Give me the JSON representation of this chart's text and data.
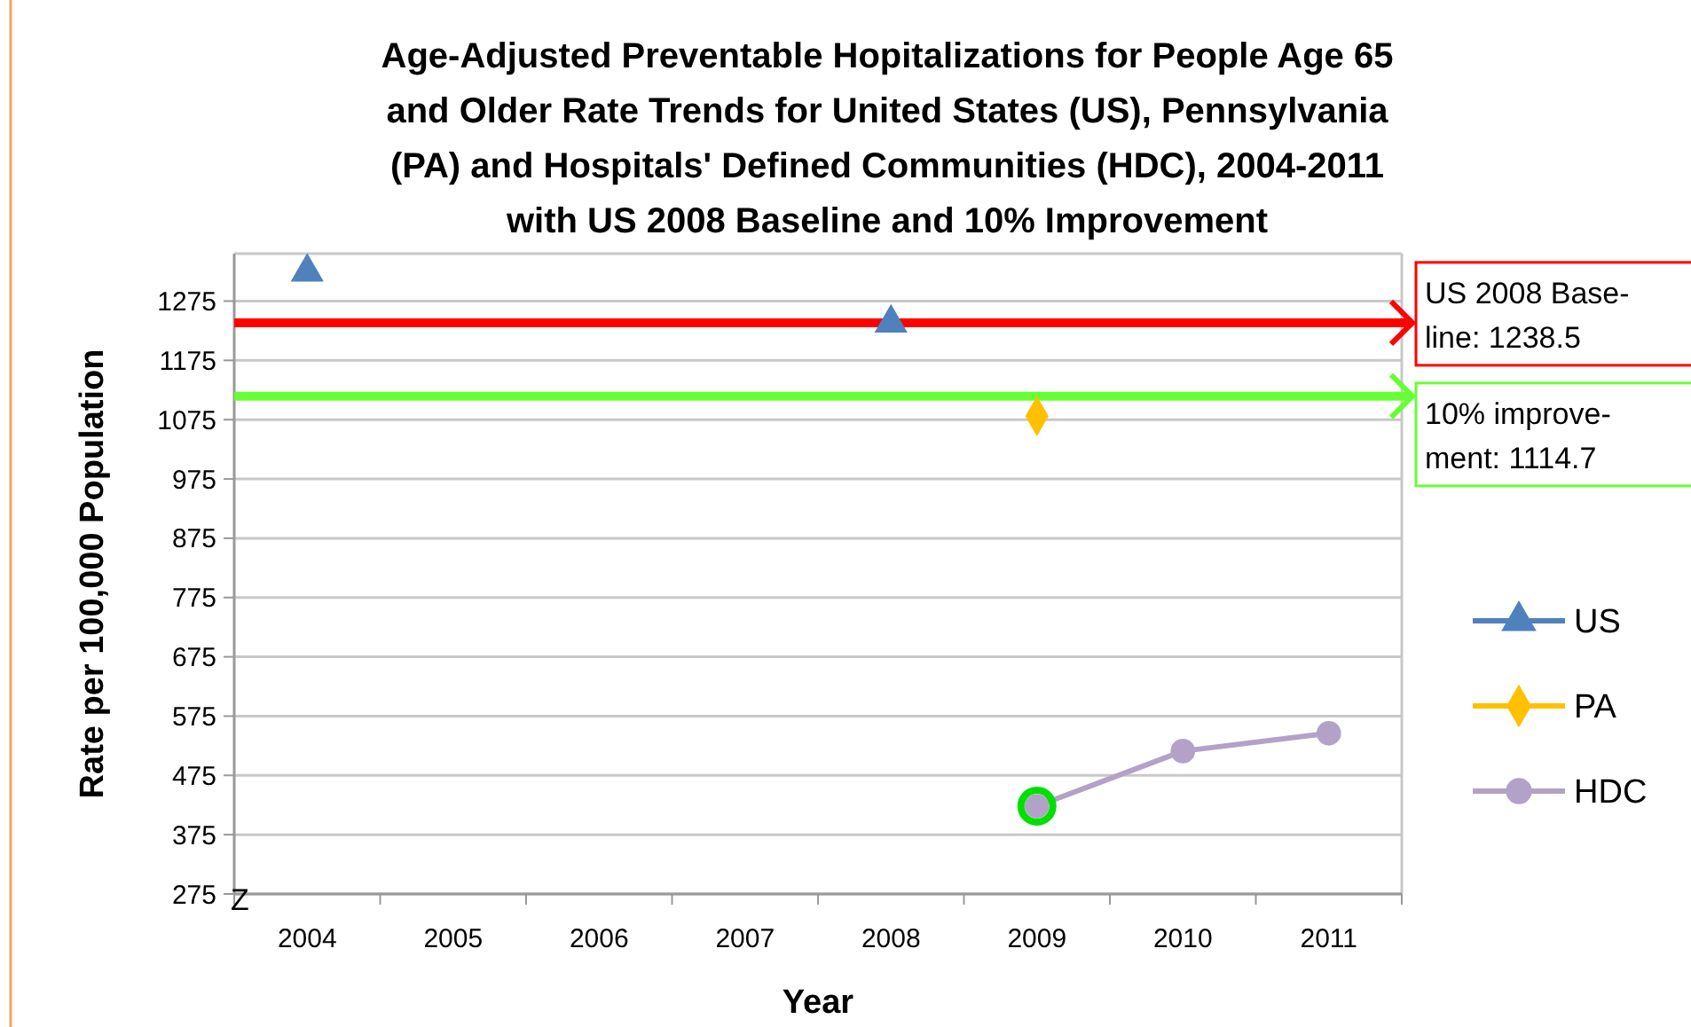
{
  "chart_data": {
    "type": "line",
    "title": "Age-Adjusted Preventable Hopitalizations for People Age 65 and Older Rate Trends for United States (US), Pennsylvania (PA) and Hospitals' Defined Communities (HDC), 2004-2011 with US 2008 Baseline and 10% Improvement",
    "xlabel": "Year",
    "ylabel": "Rate per 100,000 Population",
    "categories": [
      "2004",
      "2005",
      "2006",
      "2007",
      "2008",
      "2009",
      "2010",
      "2011"
    ],
    "ylim": [
      275,
      1355
    ],
    "yticks": [
      275,
      375,
      475,
      575,
      675,
      775,
      875,
      975,
      1075,
      1175,
      1275
    ],
    "grid": "y",
    "legend": "right",
    "series": [
      {
        "name": "US",
        "type": "scatter",
        "color": "#4f81bd",
        "marker": "triangle",
        "values": [
          1324,
          null,
          null,
          null,
          1238,
          null,
          null,
          null
        ]
      },
      {
        "name": "PA",
        "type": "scatter",
        "color": "#ffc000",
        "marker": "diamond",
        "values": [
          null,
          null,
          null,
          null,
          null,
          1081,
          null,
          null
        ]
      },
      {
        "name": "HDC",
        "color": "#b3a2c7",
        "marker": "circle",
        "values": [
          null,
          null,
          null,
          null,
          null,
          423,
          516,
          546
        ]
      }
    ],
    "ref_lines": [
      {
        "axis": "y",
        "value": 1238.5,
        "label": "US 2008 Base-\nline: 1238.5",
        "color": "#ff0000"
      },
      {
        "axis": "y",
        "value": 1114.7,
        "label": "10% improve-\nment: 1114.7",
        "color": "#66ff33"
      }
    ],
    "annotations": [
      "Z"
    ]
  }
}
